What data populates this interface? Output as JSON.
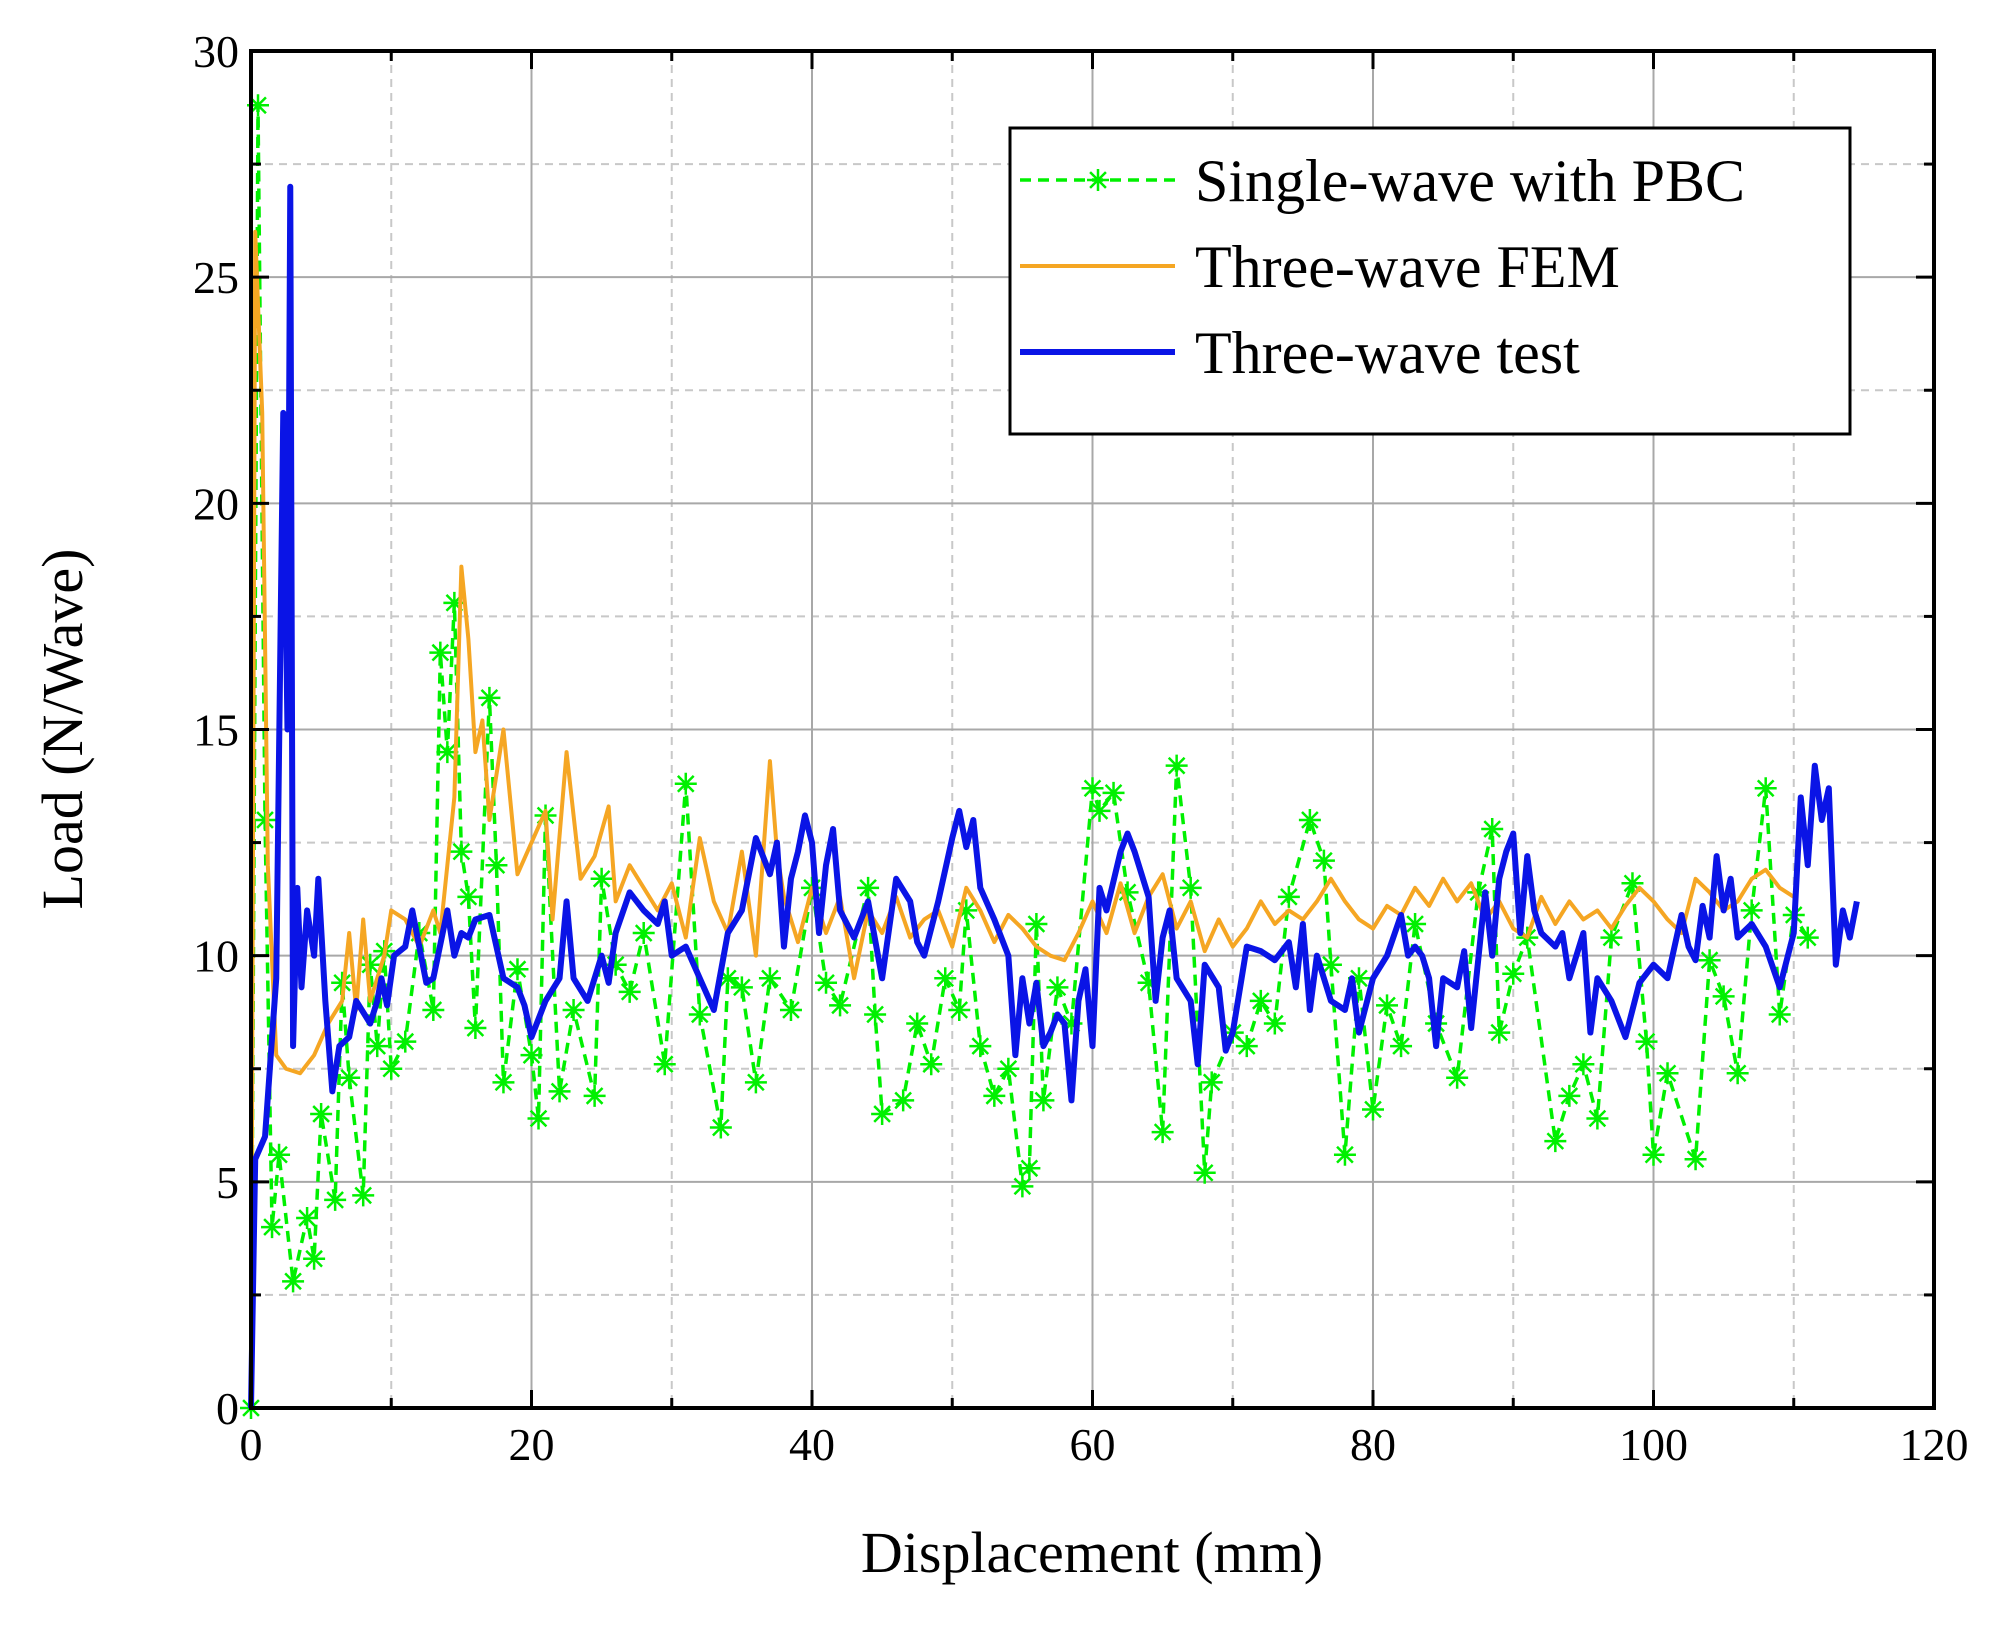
{
  "chart_data": {
    "type": "line",
    "x_label": "Displacement (mm)",
    "y_label": "Load (N/Wave)",
    "xlim": [
      0,
      120
    ],
    "xticks": [
      0,
      20,
      40,
      60,
      80,
      100,
      120
    ],
    "ylim": [
      0,
      30
    ],
    "yticks": [
      0,
      5,
      10,
      15,
      20,
      25,
      30
    ],
    "grid": true,
    "legend": "upper right",
    "series": [
      {
        "name": "Single-wave with PBC",
        "color": "#00f000",
        "dash": true,
        "marker": "asterisk",
        "x": [
          0,
          0.5,
          1,
          1.5,
          2,
          3,
          4,
          4.5,
          5,
          6,
          6.5,
          7,
          8,
          8.5,
          9,
          9.5,
          10,
          11,
          12,
          13,
          13.5,
          14,
          14.5,
          15,
          15.5,
          16,
          17,
          17.5,
          18,
          19,
          20,
          20.5,
          21,
          22,
          23,
          24.5,
          25,
          26,
          27,
          28,
          29.5,
          31,
          32,
          33.5,
          34,
          35,
          36,
          37,
          38.5,
          40,
          41,
          42,
          44,
          44.5,
          45,
          46.5,
          47.5,
          48.5,
          49.5,
          50.5,
          51,
          52,
          53,
          54,
          55,
          55.5,
          56,
          56.5,
          57.5,
          58.5,
          60,
          60.5,
          61.5,
          62.5,
          64,
          65,
          66,
          67,
          68,
          68.5,
          70,
          71,
          72,
          73,
          74,
          75.5,
          76.5,
          77,
          78,
          79,
          80,
          81,
          82,
          83,
          84.5,
          86,
          87.5,
          88.5,
          89,
          90,
          91,
          93,
          94,
          95,
          96,
          97,
          98.5,
          99.5,
          100,
          101,
          103,
          104,
          105,
          106,
          107,
          108,
          109,
          110,
          111
        ],
        "values": [
          0,
          28.8,
          13,
          4,
          5.6,
          2.8,
          4.2,
          3.3,
          6.5,
          4.6,
          9.4,
          7.3,
          4.7,
          9.8,
          8,
          10.1,
          7.5,
          8.1,
          10.5,
          8.8,
          16.7,
          14.5,
          17.8,
          12.3,
          11.3,
          8.4,
          15.7,
          12,
          7.2,
          9.7,
          7.8,
          6.4,
          13.1,
          7,
          8.8,
          6.9,
          11.7,
          9.8,
          9.2,
          10.5,
          7.6,
          13.8,
          8.7,
          6.2,
          9.5,
          9.3,
          7.2,
          9.5,
          8.8,
          11.5,
          9.4,
          8.9,
          11.5,
          8.7,
          6.5,
          6.8,
          8.5,
          7.6,
          9.5,
          8.8,
          11,
          8,
          6.9,
          7.5,
          4.9,
          5.3,
          10.7,
          6.8,
          9.3,
          8.5,
          13.7,
          13.2,
          13.6,
          11.4,
          9.4,
          6.1,
          14.2,
          11.5,
          5.2,
          7.2,
          8.3,
          8,
          9,
          8.5,
          11.3,
          13,
          12.1,
          9.8,
          5.6,
          9.5,
          6.6,
          8.9,
          8,
          10.7,
          8.5,
          7.3,
          11.4,
          12.8,
          8.3,
          9.6,
          10.4,
          5.9,
          6.9,
          7.6,
          6.4,
          10.4,
          11.6,
          8.1,
          5.6,
          7.4,
          5.5,
          9.9,
          9.1,
          7.4,
          11,
          13.7,
          8.7,
          10.9,
          10.4
        ]
      },
      {
        "name": "Three-wave FEM",
        "color": "#f5a623",
        "dash": false,
        "marker": "none",
        "x": [
          0,
          0.3,
          0.8,
          1.2,
          1.8,
          2.5,
          3.5,
          4.5,
          5.5,
          6.5,
          7,
          7.5,
          8,
          8.5,
          9,
          9.5,
          10,
          11,
          12,
          13,
          13.5,
          14,
          14.5,
          15,
          15.5,
          16,
          16.5,
          17,
          18,
          19,
          20,
          21,
          21.5,
          22.5,
          23.5,
          24.5,
          25.5,
          26,
          27,
          28,
          29,
          30,
          31,
          32,
          33,
          34,
          35,
          36,
          37,
          37.5,
          38,
          39,
          40,
          41,
          42,
          43,
          44,
          45,
          46,
          47,
          48,
          49,
          50,
          51,
          52,
          53,
          54,
          55,
          56,
          57,
          58,
          59,
          60,
          61,
          62,
          63,
          64,
          65,
          66,
          67,
          68,
          69,
          70,
          71,
          72,
          73,
          74,
          75,
          76,
          77,
          78,
          79,
          80,
          81,
          82,
          83,
          84,
          85,
          86,
          87,
          88,
          89,
          90,
          91,
          92,
          93,
          94,
          95,
          96,
          97,
          98,
          99,
          100,
          101,
          102,
          103,
          104,
          105,
          106,
          107,
          108,
          109,
          110
        ],
        "values": [
          0,
          26,
          22,
          12,
          7.8,
          7.5,
          7.4,
          7.8,
          8.5,
          9,
          10.5,
          8.8,
          10.8,
          9,
          9.5,
          10,
          11,
          10.8,
          10.2,
          11,
          10.5,
          12,
          13.5,
          18.6,
          17,
          14.5,
          15.2,
          13,
          15,
          11.8,
          12.5,
          13.2,
          10.8,
          14.5,
          11.7,
          12.2,
          13.3,
          11.2,
          12,
          11.5,
          11,
          11.6,
          10.4,
          12.6,
          11.2,
          10.5,
          12.3,
          10,
          14.3,
          12.3,
          11.3,
          10.3,
          11.5,
          10.5,
          11.3,
          9.5,
          11,
          10.5,
          11.3,
          10.4,
          10.8,
          11,
          10.2,
          11.5,
          11,
          10.3,
          10.9,
          10.6,
          10.2,
          10,
          9.9,
          10.5,
          11.2,
          10.5,
          11.6,
          10.5,
          11.3,
          11.8,
          10.6,
          11.2,
          10.1,
          10.8,
          10.2,
          10.6,
          11.2,
          10.7,
          11,
          10.8,
          11.2,
          11.7,
          11.2,
          10.8,
          10.6,
          11.1,
          10.9,
          11.5,
          11.1,
          11.7,
          11.2,
          11.6,
          10.8,
          11.2,
          10.6,
          10.4,
          11.3,
          10.7,
          11.2,
          10.8,
          11,
          10.6,
          11.1,
          11.5,
          11.2,
          10.8,
          10.5,
          11.7,
          11.4,
          11,
          11.2,
          11.7,
          11.9,
          11.5,
          11.3
        ]
      },
      {
        "name": "Three-wave test",
        "color": "#0a14e6",
        "dash": false,
        "marker": "none",
        "x": [
          0,
          0.3,
          1,
          1.8,
          2.3,
          2.6,
          2.8,
          3,
          3.3,
          3.6,
          4,
          4.5,
          4.8,
          5.3,
          5.8,
          6.3,
          7,
          7.5,
          8.5,
          9,
          9.3,
          9.7,
          10.2,
          11,
          11.5,
          12,
          12.5,
          13,
          14,
          14.5,
          15,
          15.5,
          16,
          17,
          17.5,
          18,
          19,
          19.5,
          20,
          21,
          22,
          22.5,
          23,
          24,
          25,
          25.5,
          26,
          27,
          28,
          29,
          29.5,
          30,
          31,
          32,
          33,
          34,
          35,
          36,
          37,
          37.5,
          38,
          38.5,
          39,
          39.5,
          40,
          40.5,
          41,
          41.5,
          42,
          43,
          44,
          45,
          46,
          47,
          47.5,
          48,
          49,
          50,
          50.5,
          51,
          51.5,
          52,
          53,
          54,
          54.5,
          55,
          55.5,
          56,
          56.5,
          57,
          57.5,
          58,
          58.5,
          59,
          59.5,
          60,
          60.5,
          61,
          62,
          62.5,
          63,
          64,
          64.5,
          65,
          65.5,
          66,
          67,
          67.5,
          68,
          69,
          69.5,
          70,
          71,
          72,
          73,
          74,
          74.5,
          75,
          75.5,
          76,
          77,
          78,
          78.5,
          79,
          80,
          81,
          82,
          82.5,
          83,
          83.5,
          84,
          84.5,
          85,
          86,
          86.5,
          87,
          88,
          88.5,
          89,
          89.5,
          90,
          90.5,
          91,
          91.5,
          92,
          93,
          93.5,
          94,
          95,
          95.5,
          96,
          97,
          98,
          99,
          100,
          101,
          102,
          102.5,
          103,
          103.5,
          104,
          104.5,
          105,
          105.5,
          106,
          107,
          108,
          109,
          110,
          110.5,
          111,
          111.5,
          112,
          112.5,
          113,
          113.5,
          114,
          114.5
        ],
        "values": [
          0,
          5.5,
          6,
          9.5,
          22,
          15,
          27,
          8,
          11.5,
          9.3,
          11,
          10,
          11.7,
          9,
          7,
          8,
          8.2,
          9,
          8.5,
          9,
          9.5,
          8.9,
          10,
          10.2,
          11,
          10.2,
          9.4,
          9.5,
          11,
          10,
          10.5,
          10.4,
          10.8,
          10.9,
          10.2,
          9.5,
          9.3,
          8.9,
          8.2,
          9,
          9.5,
          11.2,
          9.5,
          9,
          10,
          9.4,
          10.5,
          11.4,
          11,
          10.7,
          11.2,
          10,
          10.2,
          9.5,
          8.8,
          10.5,
          11,
          12.6,
          11.8,
          12.5,
          10.2,
          11.7,
          12.3,
          13.1,
          12.5,
          10.5,
          12,
          12.8,
          11,
          10.4,
          11.2,
          9.5,
          11.7,
          11.2,
          10.3,
          10,
          11.2,
          12.6,
          13.2,
          12.4,
          13,
          11.5,
          10.8,
          10,
          7.8,
          9.5,
          8.5,
          9.4,
          8,
          8.3,
          8.7,
          8.5,
          6.8,
          9,
          9.7,
          8,
          11.5,
          11,
          12.3,
          12.7,
          12.3,
          11.3,
          9,
          10.4,
          11,
          9.5,
          9,
          7.6,
          9.8,
          9.3,
          7.9,
          8.3,
          10.2,
          10.1,
          9.9,
          10.3,
          9.3,
          10.7,
          8.8,
          10,
          9,
          8.8,
          9.5,
          8.3,
          9.5,
          10,
          10.9,
          10,
          10.2,
          10,
          9.5,
          8,
          9.5,
          9.3,
          10.1,
          8.4,
          11.4,
          10,
          11.7,
          12.3,
          12.7,
          10.5,
          12.2,
          11,
          10.5,
          10.2,
          10.5,
          9.5,
          10.5,
          8.3,
          9.5,
          9,
          8.2,
          9.4,
          9.8,
          9.5,
          10.9,
          10.2,
          9.9,
          11.1,
          10.4,
          12.2,
          11,
          11.7,
          10.4,
          10.7,
          10.2,
          9.3,
          10.5,
          13.5,
          12,
          14.2,
          13,
          13.7,
          9.8,
          11,
          10.4,
          11.2
        ]
      }
    ]
  }
}
